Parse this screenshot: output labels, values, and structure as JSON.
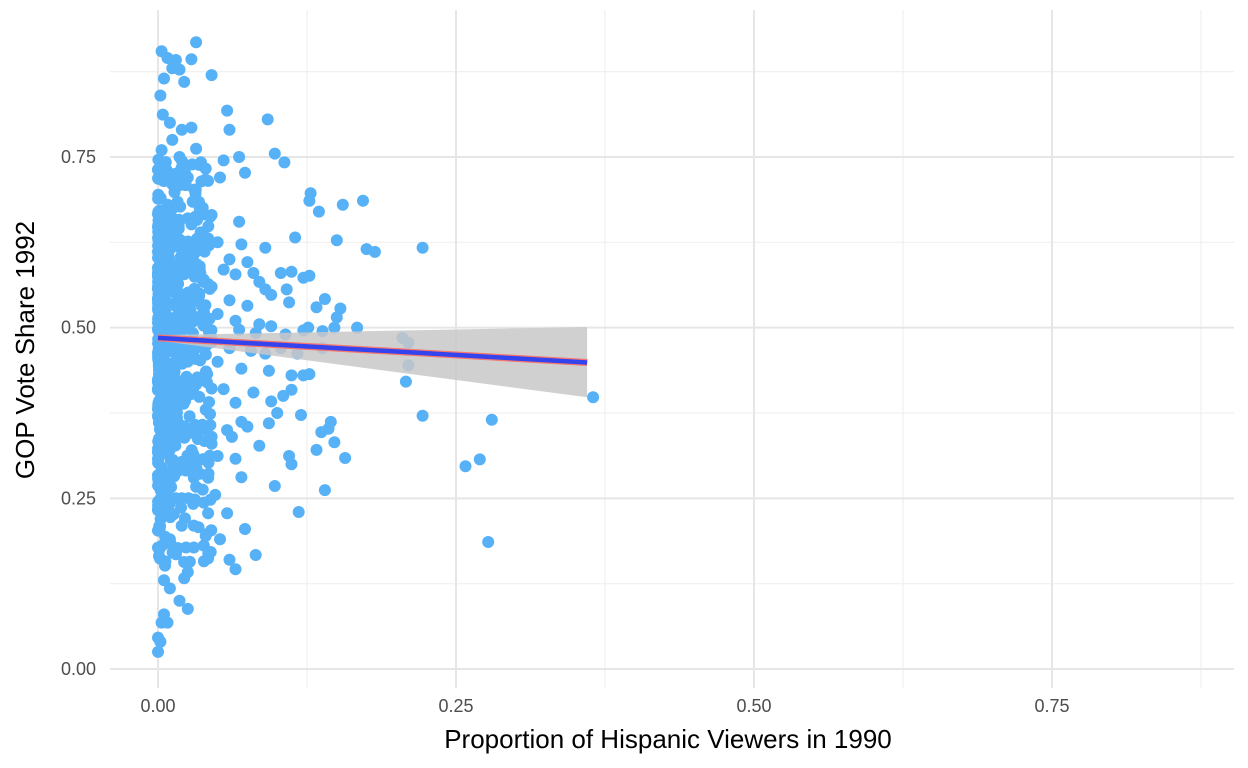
{
  "chart_data": {
    "type": "scatter",
    "title": "",
    "xlabel": "Proportion of Hispanic Viewers in 1990",
    "ylabel": "GOP Vote Share 1992",
    "xlim": [
      -0.09,
      1.8
    ],
    "ylim": [
      -0.03,
      0.96
    ],
    "x_ticks": [
      0.0,
      0.25,
      0.5,
      0.75
    ],
    "x_tick_labels": [
      "0.00",
      "0.25",
      "0.50",
      "0.75"
    ],
    "y_ticks": [
      0.0,
      0.25,
      0.5,
      0.75
    ],
    "y_tick_labels": [
      "0.00",
      "0.25",
      "0.50",
      "0.75"
    ],
    "grid": true,
    "point_color": "#56B1F7",
    "fit_line_color": "#3344ee",
    "fit_line_edge_color": "#F8766D",
    "ribbon_color": "#c8c8c8",
    "fit": {
      "type": "linear",
      "x_range": [
        0.0,
        0.36
      ],
      "y_start": 0.485,
      "y_end": 0.449,
      "ci_upper": [
        0.489,
        0.501
      ],
      "ci_lower": [
        0.481,
        0.398
      ]
    },
    "points": [
      [
        0.003,
        0.905
      ],
      [
        0.008,
        0.895
      ],
      [
        0.015,
        0.892
      ],
      [
        0.028,
        0.893
      ],
      [
        0.032,
        0.918
      ],
      [
        0.045,
        0.87
      ],
      [
        0.002,
        0.84
      ],
      [
        0.005,
        0.865
      ],
      [
        0.012,
        0.88
      ],
      [
        0.022,
        0.86
      ],
      [
        0.018,
        0.878
      ],
      [
        0.004,
        0.812
      ],
      [
        0.01,
        0.8
      ],
      [
        0.02,
        0.79
      ],
      [
        0.028,
        0.793
      ],
      [
        0.058,
        0.818
      ],
      [
        0.06,
        0.79
      ],
      [
        0.092,
        0.805
      ],
      [
        0.003,
        0.76
      ],
      [
        0.012,
        0.775
      ],
      [
        0.018,
        0.75
      ],
      [
        0.032,
        0.762
      ],
      [
        0.04,
        0.733
      ],
      [
        0.055,
        0.745
      ],
      [
        0.068,
        0.75
      ],
      [
        0.073,
        0.727
      ],
      [
        0.098,
        0.755
      ],
      [
        0.106,
        0.742
      ],
      [
        0.012,
        0.71
      ],
      [
        0.025,
        0.72
      ],
      [
        0.042,
        0.715
      ],
      [
        0.052,
        0.72
      ],
      [
        0.128,
        0.697
      ],
      [
        0.127,
        0.686
      ],
      [
        0.135,
        0.67
      ],
      [
        0.155,
        0.68
      ],
      [
        0.172,
        0.686
      ],
      [
        0.008,
        0.68
      ],
      [
        0.025,
        0.66
      ],
      [
        0.035,
        0.675
      ],
      [
        0.045,
        0.665
      ],
      [
        0.068,
        0.655
      ],
      [
        0.115,
        0.632
      ],
      [
        0.15,
        0.628
      ],
      [
        0.175,
        0.615
      ],
      [
        0.182,
        0.611
      ],
      [
        0.222,
        0.617
      ],
      [
        0.015,
        0.64
      ],
      [
        0.03,
        0.622
      ],
      [
        0.05,
        0.625
      ],
      [
        0.07,
        0.622
      ],
      [
        0.09,
        0.617
      ],
      [
        0.06,
        0.6
      ],
      [
        0.075,
        0.596
      ],
      [
        0.08,
        0.58
      ],
      [
        0.008,
        0.6
      ],
      [
        0.035,
        0.59
      ],
      [
        0.055,
        0.585
      ],
      [
        0.065,
        0.578
      ],
      [
        0.085,
        0.567
      ],
      [
        0.103,
        0.58
      ],
      [
        0.112,
        0.582
      ],
      [
        0.122,
        0.573
      ],
      [
        0.127,
        0.576
      ],
      [
        0.09,
        0.556
      ],
      [
        0.108,
        0.556
      ],
      [
        0.095,
        0.548
      ],
      [
        0.045,
        0.56
      ],
      [
        0.06,
        0.54
      ],
      [
        0.075,
        0.532
      ],
      [
        0.11,
        0.537
      ],
      [
        0.14,
        0.542
      ],
      [
        0.153,
        0.528
      ],
      [
        0.133,
        0.53
      ],
      [
        0.15,
        0.515
      ],
      [
        0.148,
        0.5
      ],
      [
        0.167,
        0.5
      ],
      [
        0.122,
        0.496
      ],
      [
        0.126,
        0.5
      ],
      [
        0.05,
        0.52
      ],
      [
        0.065,
        0.51
      ],
      [
        0.085,
        0.505
      ],
      [
        0.095,
        0.502
      ],
      [
        0.068,
        0.497
      ],
      [
        0.082,
        0.492
      ],
      [
        0.107,
        0.49
      ],
      [
        0.138,
        0.495
      ],
      [
        0.04,
        0.48
      ],
      [
        0.06,
        0.47
      ],
      [
        0.078,
        0.466
      ],
      [
        0.09,
        0.462
      ],
      [
        0.103,
        0.47
      ],
      [
        0.117,
        0.462
      ],
      [
        0.138,
        0.47
      ],
      [
        0.05,
        0.45
      ],
      [
        0.07,
        0.44
      ],
      [
        0.093,
        0.437
      ],
      [
        0.112,
        0.43
      ],
      [
        0.122,
        0.43
      ],
      [
        0.127,
        0.432
      ],
      [
        0.112,
        0.409
      ],
      [
        0.105,
        0.4
      ],
      [
        0.03,
        0.42
      ],
      [
        0.055,
        0.41
      ],
      [
        0.065,
        0.39
      ],
      [
        0.08,
        0.405
      ],
      [
        0.095,
        0.392
      ],
      [
        0.1,
        0.375
      ],
      [
        0.093,
        0.36
      ],
      [
        0.075,
        0.355
      ],
      [
        0.07,
        0.362
      ],
      [
        0.04,
        0.38
      ],
      [
        0.058,
        0.35
      ],
      [
        0.062,
        0.34
      ],
      [
        0.085,
        0.327
      ],
      [
        0.12,
        0.372
      ],
      [
        0.145,
        0.362
      ],
      [
        0.143,
        0.352
      ],
      [
        0.137,
        0.347
      ],
      [
        0.148,
        0.332
      ],
      [
        0.133,
        0.321
      ],
      [
        0.045,
        0.33
      ],
      [
        0.05,
        0.312
      ],
      [
        0.065,
        0.308
      ],
      [
        0.11,
        0.312
      ],
      [
        0.112,
        0.3
      ],
      [
        0.157,
        0.309
      ],
      [
        0.098,
        0.268
      ],
      [
        0.07,
        0.281
      ],
      [
        0.14,
        0.262
      ],
      [
        0.03,
        0.28
      ],
      [
        0.048,
        0.255
      ],
      [
        0.042,
        0.228
      ],
      [
        0.058,
        0.228
      ],
      [
        0.118,
        0.23
      ],
      [
        0.073,
        0.205
      ],
      [
        0.02,
        0.25
      ],
      [
        0.03,
        0.21
      ],
      [
        0.04,
        0.195
      ],
      [
        0.052,
        0.19
      ],
      [
        0.03,
        0.178
      ],
      [
        0.082,
        0.167
      ],
      [
        0.06,
        0.16
      ],
      [
        0.065,
        0.146
      ],
      [
        0.042,
        0.162
      ],
      [
        0.01,
        0.19
      ],
      [
        0.015,
        0.168
      ],
      [
        0.025,
        0.142
      ],
      [
        0.022,
        0.133
      ],
      [
        0.01,
        0.118
      ],
      [
        0.005,
        0.13
      ],
      [
        0.018,
        0.1
      ],
      [
        0.025,
        0.088
      ],
      [
        0.005,
        0.08
      ],
      [
        0.008,
        0.068
      ],
      [
        0.003,
        0.068
      ],
      [
        0.0,
        0.046
      ],
      [
        0.002,
        0.04
      ],
      [
        0.0,
        0.025
      ],
      [
        0.205,
        0.485
      ],
      [
        0.21,
        0.478
      ],
      [
        0.21,
        0.445
      ],
      [
        0.208,
        0.421
      ],
      [
        0.222,
        0.371
      ],
      [
        0.28,
        0.365
      ],
      [
        0.27,
        0.307
      ],
      [
        0.258,
        0.297
      ],
      [
        0.277,
        0.186
      ],
      [
        0.365,
        0.398
      ]
    ]
  }
}
